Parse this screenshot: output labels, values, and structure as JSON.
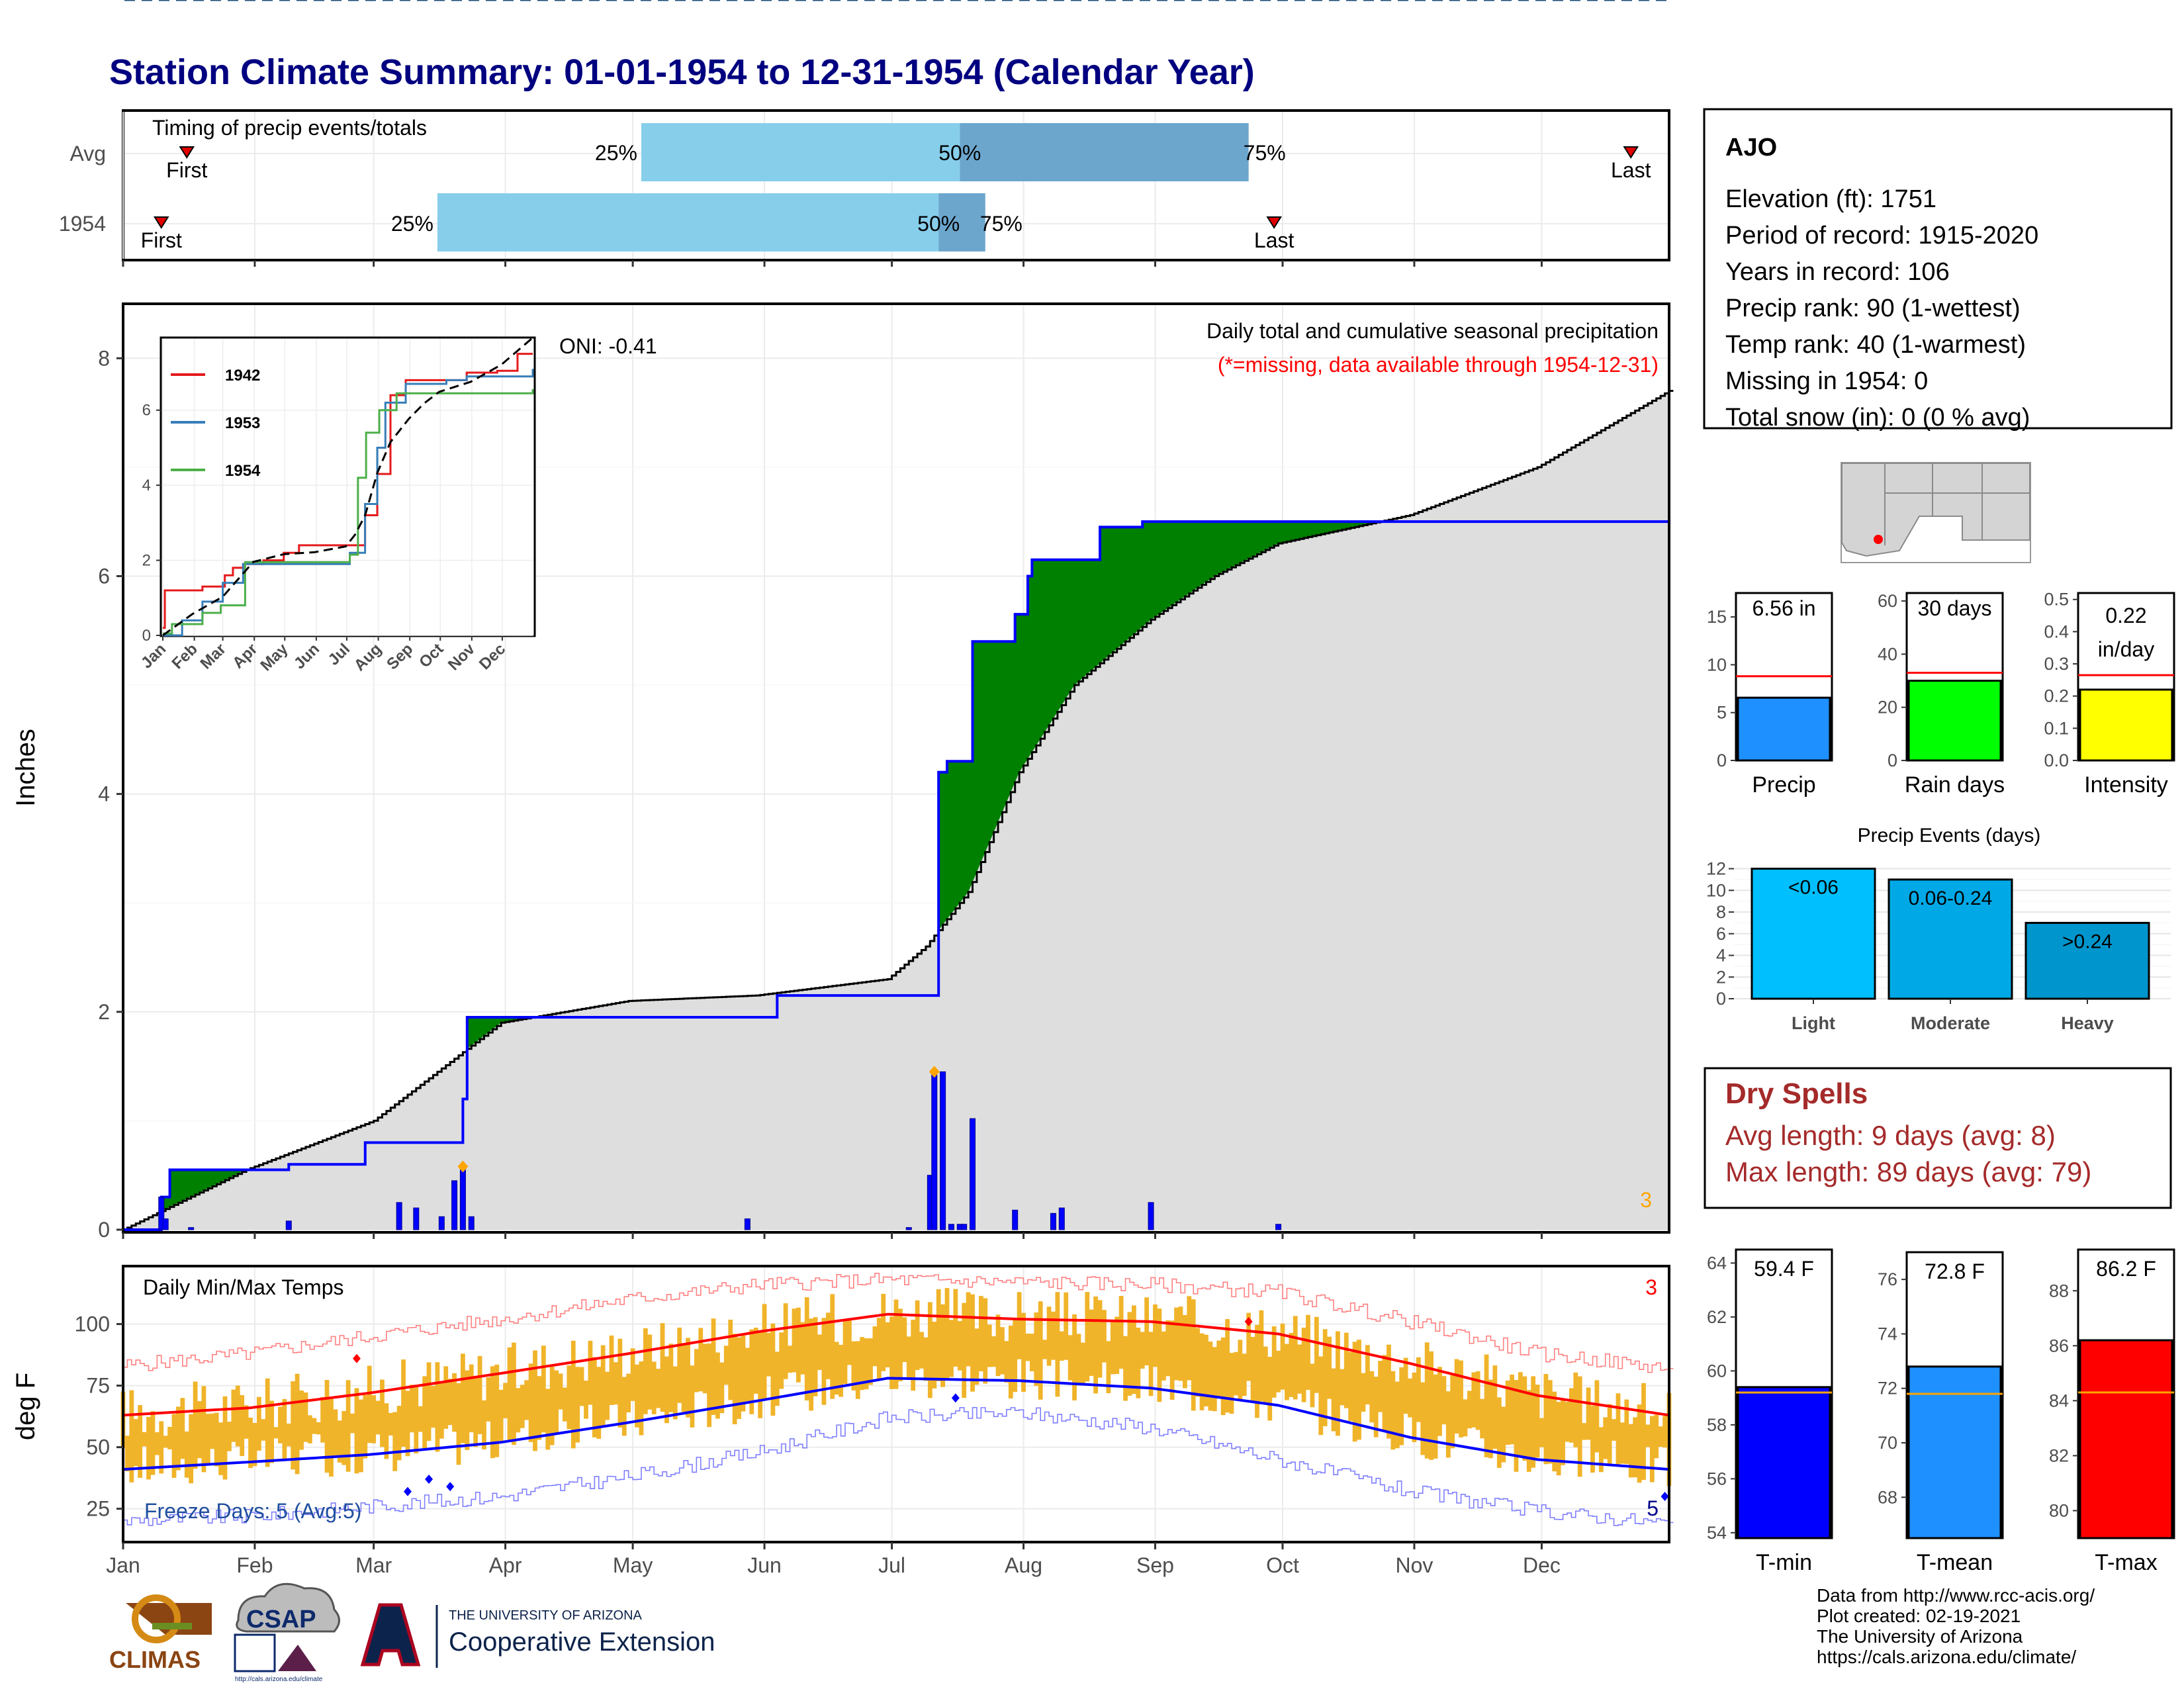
{
  "title": "Station Climate Summary: 01-01-1954 to 12-31-1954 (Calendar Year)",
  "months": [
    "Jan",
    "Feb",
    "Mar",
    "Apr",
    "May",
    "Jun",
    "Jul",
    "Aug",
    "Sep",
    "Oct",
    "Nov",
    "Dec"
  ],
  "timing": {
    "title": "Timing of precip events/totals",
    "row_labels": [
      "Avg",
      "1954"
    ],
    "pct_labels": [
      "25%",
      "50%",
      "75%"
    ],
    "first_label": "First",
    "last_label": "Last",
    "avg": {
      "first": 16,
      "p25": 123,
      "p50": 198,
      "p75": 266,
      "last": 356
    },
    "year": {
      "first": 10,
      "p25": 75,
      "p50": 193,
      "p75": 204,
      "last": 272
    }
  },
  "precip_panel": {
    "ylabel": "Inches",
    "yticks": [
      0,
      2,
      4,
      6,
      8
    ],
    "ylim": [
      0,
      8.5
    ],
    "oni": "ONI: -0.41",
    "subtitle": "Daily total and cumulative seasonal precipitation",
    "missing_note": "(*=missing, data available through 1954-12-31)",
    "corner_count": "3",
    "colors": {
      "above": "#008000",
      "below": "#8B5A00",
      "normal": "#DEDEDF",
      "line": "#0000FF",
      "bars": "#0000FF",
      "marker": "#FFA500"
    }
  },
  "inset": {
    "yticks": [
      0,
      2,
      4,
      6
    ],
    "months": [
      "Jan",
      "Feb",
      "Mar",
      "Apr",
      "May",
      "Jun",
      "Jul",
      "Aug",
      "Sep",
      "Oct",
      "Nov",
      "Dec"
    ],
    "series": [
      {
        "name": "1942",
        "color": "#E41A1C"
      },
      {
        "name": "1953",
        "color": "#377EB8"
      },
      {
        "name": "1954",
        "color": "#4DAF4A"
      }
    ]
  },
  "temp_panel": {
    "ylabel": "deg F",
    "title": "Daily Min/Max Temps",
    "yticks": [
      25,
      50,
      75,
      100
    ],
    "ylim": [
      12,
      123
    ],
    "freeze_label": "Freeze Days: 5 (Avg:5)",
    "corner_top": "3",
    "corner_bottom": "5",
    "freeze_line": 32
  },
  "station": {
    "name": "AJO",
    "lines": [
      "Elevation (ft): 1751",
      "Period of record: 1915-2020",
      "Years in record: 106",
      "Precip rank: 90 (1-wettest)",
      "Temp rank: 40 (1-warmest)",
      "Missing in 1954: 0",
      "Total snow (in): 0 (0 % avg)"
    ]
  },
  "summary_bars": [
    {
      "label": "Precip",
      "value_text": "6.56 in",
      "value": 6.56,
      "avg": 8.8,
      "ymax": 17.5,
      "ticks": [
        0,
        5,
        10,
        15
      ],
      "color": "#1E90FF"
    },
    {
      "label": "Rain days",
      "value_text": "30 days",
      "value": 30,
      "avg": 33,
      "ymax": 63,
      "ticks": [
        0,
        20,
        40,
        60
      ],
      "color": "#00FF00"
    },
    {
      "label": "Intensity",
      "value_text": "0.22 in/day",
      "value": 0.22,
      "avg": 0.265,
      "ymax": 0.52,
      "ticks": [
        0.0,
        0.1,
        0.2,
        0.3,
        0.4,
        0.5
      ],
      "color": "#FFFF00"
    }
  ],
  "precip_events": {
    "title": "Precip Events (days)",
    "categories": [
      "Light",
      "Moderate",
      "Heavy"
    ],
    "bar_labels": [
      "<0.06",
      "0.06-0.24",
      ">0.24"
    ],
    "values": [
      12,
      11,
      7
    ],
    "yticks": [
      0,
      2,
      4,
      6,
      8,
      10,
      12
    ],
    "colors": [
      "#00BFFF",
      "#00A9E6",
      "#0096CD"
    ]
  },
  "dry_spells": {
    "title": "Dry Spells",
    "avg_line": "Avg length: 9 days (avg: 8)",
    "max_line": "Max length: 89 days (avg: 79)"
  },
  "temp_bars": [
    {
      "label": "T-min",
      "value_text": "59.4 F",
      "value": 59.4,
      "avg": 59.2,
      "ymin": 53.8,
      "ymax": 64.5,
      "ticks": [
        54,
        56,
        58,
        60,
        62,
        64
      ],
      "color": "#0000FF"
    },
    {
      "label": "T-mean",
      "value_text": "72.8 F",
      "value": 72.8,
      "avg": 71.8,
      "ymin": 66.5,
      "ymax": 77,
      "ticks": [
        68,
        70,
        72,
        74,
        76
      ],
      "color": "#1E90FF"
    },
    {
      "label": "T-max",
      "value_text": "86.2 F",
      "value": 86.2,
      "avg": 84.3,
      "ymin": 79,
      "ymax": 89.5,
      "ticks": [
        80,
        82,
        84,
        86,
        88
      ],
      "color": "#FF0000"
    }
  ],
  "footer": {
    "lines": [
      "Data from http://www.rcc-acis.org/",
      "Plot created: 02-19-2021",
      "The University of Arizona",
      "https://cals.arizona.edu/climate/"
    ]
  },
  "logos": {
    "climas": "CLIMAS",
    "csap": "CSAP",
    "csap_url": "http://cals.arizona.edu/climate",
    "ua_small": "THE UNIVERSITY OF ARIZONA",
    "ua_ext": "Cooperative Extension"
  },
  "chart_data": [
    {
      "type": "area",
      "title": "Daily total and cumulative seasonal precipitation",
      "ylabel": "Inches",
      "ylim": [
        0,
        8.5
      ],
      "cumulative_1954": [
        [
          1,
          0
        ],
        [
          10,
          0.3
        ],
        [
          12,
          0.55
        ],
        [
          40,
          0.6
        ],
        [
          50,
          0.6
        ],
        [
          58,
          0.8
        ],
        [
          78,
          0.8
        ],
        [
          81,
          1.2
        ],
        [
          82,
          1.95
        ],
        [
          150,
          1.95
        ],
        [
          155,
          2.15
        ],
        [
          185,
          2.15
        ],
        [
          193,
          2.2
        ],
        [
          193,
          4.2
        ],
        [
          195,
          4.3
        ],
        [
          200,
          4.3
        ],
        [
          201,
          5.4
        ],
        [
          210,
          5.4
        ],
        [
          211,
          5.65
        ],
        [
          213,
          5.65
        ],
        [
          214,
          6.0
        ],
        [
          215,
          6.15
        ],
        [
          230,
          6.15
        ],
        [
          231,
          6.45
        ],
        [
          240,
          6.45
        ],
        [
          241,
          6.5
        ],
        [
          365,
          6.56
        ]
      ],
      "normal_cumulative": [
        [
          1,
          0
        ],
        [
          30,
          0.55
        ],
        [
          60,
          1.0
        ],
        [
          90,
          1.9
        ],
        [
          120,
          2.1
        ],
        [
          150,
          2.15
        ],
        [
          181,
          2.3
        ],
        [
          190,
          2.6
        ],
        [
          200,
          3.1
        ],
        [
          212,
          4.2
        ],
        [
          225,
          5.0
        ],
        [
          243,
          5.6
        ],
        [
          258,
          6.0
        ],
        [
          273,
          6.3
        ],
        [
          304,
          6.56
        ],
        [
          334,
          7.0
        ],
        [
          365,
          7.7
        ]
      ],
      "daily_precip": [
        [
          10,
          0.3
        ],
        [
          11,
          0.1
        ],
        [
          17,
          0.02
        ],
        [
          40,
          0.08
        ],
        [
          66,
          0.25
        ],
        [
          70,
          0.2
        ],
        [
          76,
          0.12
        ],
        [
          79,
          0.45
        ],
        [
          81,
          0.55
        ],
        [
          83,
          0.12
        ],
        [
          148,
          0.1
        ],
        [
          186,
          0.02
        ],
        [
          191,
          0.5
        ],
        [
          192,
          1.45
        ],
        [
          194,
          1.45
        ],
        [
          196,
          0.05
        ],
        [
          198,
          0.05
        ],
        [
          199,
          0.05
        ],
        [
          201,
          1.02
        ],
        [
          211,
          0.18
        ],
        [
          220,
          0.15
        ],
        [
          222,
          0.2
        ],
        [
          243,
          0.25
        ],
        [
          273,
          0.05
        ]
      ],
      "max_day_markers": [
        [
          81,
          0.58
        ],
        [
          192,
          1.45
        ]
      ]
    },
    {
      "type": "line",
      "title": "Daily Min/Max Temps",
      "ylabel": "deg F",
      "ylim": [
        12,
        123
      ],
      "avg_max": [
        [
          1,
          63
        ],
        [
          31,
          66
        ],
        [
          59,
          72
        ],
        [
          90,
          80
        ],
        [
          120,
          88
        ],
        [
          151,
          97
        ],
        [
          181,
          104
        ],
        [
          212,
          102
        ],
        [
          243,
          101
        ],
        [
          273,
          96
        ],
        [
          304,
          84
        ],
        [
          334,
          71
        ],
        [
          365,
          63
        ]
      ],
      "avg_min": [
        [
          1,
          41
        ],
        [
          31,
          44
        ],
        [
          59,
          47
        ],
        [
          90,
          52
        ],
        [
          120,
          60
        ],
        [
          151,
          69
        ],
        [
          181,
          78
        ],
        [
          212,
          77
        ],
        [
          243,
          74
        ],
        [
          273,
          67
        ],
        [
          304,
          54
        ],
        [
          334,
          45
        ],
        [
          365,
          41
        ]
      ],
      "record_high": [
        [
          1,
          83
        ],
        [
          31,
          88
        ],
        [
          59,
          95
        ],
        [
          90,
          102
        ],
        [
          120,
          110
        ],
        [
          151,
          116
        ],
        [
          181,
          118
        ],
        [
          212,
          117
        ],
        [
          243,
          116
        ],
        [
          273,
          113
        ],
        [
          304,
          101
        ],
        [
          334,
          88
        ],
        [
          365,
          82
        ]
      ],
      "record_low": [
        [
          1,
          20
        ],
        [
          31,
          22
        ],
        [
          59,
          26
        ],
        [
          90,
          30
        ],
        [
          120,
          38
        ],
        [
          151,
          48
        ],
        [
          181,
          62
        ],
        [
          212,
          64
        ],
        [
          243,
          58
        ],
        [
          273,
          45
        ],
        [
          304,
          32
        ],
        [
          334,
          24
        ],
        [
          365,
          19
        ]
      ],
      "freeze_days": 5
    },
    {
      "type": "bar",
      "title": "Precip Events (days)",
      "categories": [
        "Light",
        "Moderate",
        "Heavy"
      ],
      "values": [
        12,
        11,
        7
      ]
    }
  ]
}
